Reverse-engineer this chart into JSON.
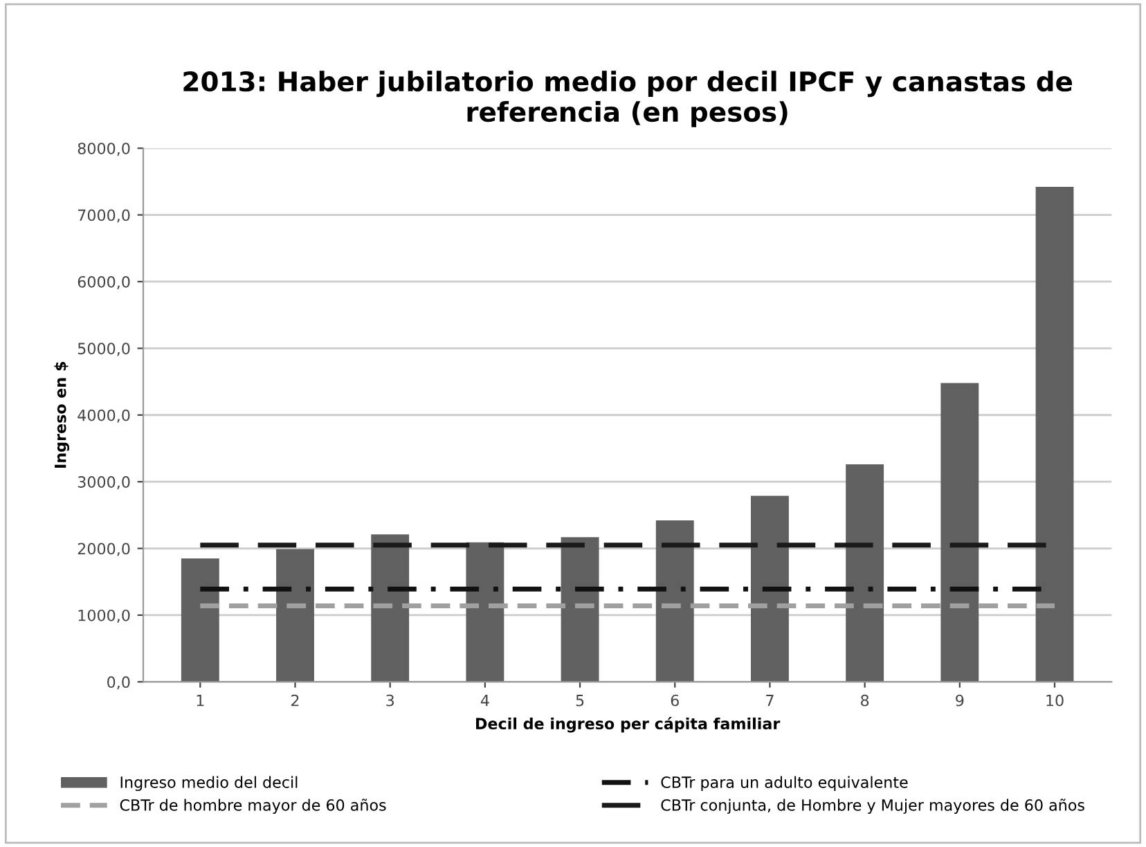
{
  "chart_data": {
    "type": "bar",
    "title": "2013: Haber jubilatorio medio por decil IPCF y canastas de referencia (en pesos)",
    "xlabel": "Decil de ingreso per cápita familiar",
    "ylabel": "Ingreso en $",
    "categories": [
      "1",
      "2",
      "3",
      "4",
      "5",
      "6",
      "7",
      "8",
      "9",
      "10"
    ],
    "series": [
      {
        "name": "Ingreso medio del decil",
        "color": "#606060",
        "values": [
          1850,
          1990,
          2210,
          2090,
          2170,
          2420,
          2790,
          3260,
          4480,
          7420
        ]
      },
      {
        "name": "CBTr para un adulto equivalente",
        "type": "line",
        "color": "#111111",
        "line_style": "dashdot",
        "values": [
          1390,
          1390,
          1390,
          1390,
          1390,
          1390,
          1390,
          1390,
          1390,
          1390
        ]
      },
      {
        "name": "CBTr de hombre mayor de 60 años",
        "type": "line",
        "color": "#a0a0a0",
        "line_style": "dashed",
        "values": [
          1140,
          1140,
          1140,
          1140,
          1140,
          1140,
          1140,
          1140,
          1140,
          1140
        ]
      },
      {
        "name": "CBTr conjunta, de Hombre y Mujer mayores de 60 años",
        "type": "line",
        "color": "#1a1a1a",
        "line_style": "longdash",
        "values": [
          2050,
          2050,
          2050,
          2050,
          2050,
          2050,
          2050,
          2050,
          2050,
          2050
        ]
      }
    ],
    "ylim": [
      0,
      8000
    ],
    "yticks": [
      {
        "value": 0,
        "label": "0,0"
      },
      {
        "value": 1000,
        "label": "1000,0"
      },
      {
        "value": 2000,
        "label": "2000,0"
      },
      {
        "value": 3000,
        "label": "3000,0"
      },
      {
        "value": 4000,
        "label": "4000,0"
      },
      {
        "value": 5000,
        "label": "5000,0"
      },
      {
        "value": 6000,
        "label": "6000,0"
      },
      {
        "value": 7000,
        "label": "7000,0"
      },
      {
        "value": 8000,
        "label": "8000,0"
      }
    ],
    "grid": "y",
    "legend": "bottom"
  }
}
